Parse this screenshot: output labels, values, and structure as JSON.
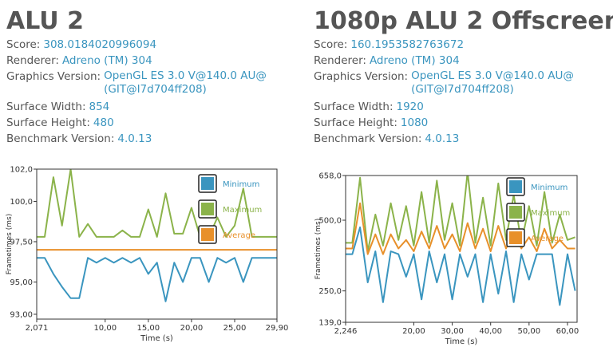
{
  "left": {
    "title": "ALU 2",
    "score_label": "Score:",
    "score": "308.0184020996094",
    "renderer_label": "Renderer:",
    "renderer": "Adreno (TM) 304",
    "gv_label": "Graphics Version:",
    "gv_line1": "OpenGL ES 3.0 V@140.0 AU@",
    "gv_line2": "(GIT@I7d704ff208)",
    "sw_label": "Surface Width:",
    "sw": "854",
    "sh_label": "Surface Height:",
    "sh": "480",
    "bv_label": "Benchmark Version:",
    "bv": "4.0.13"
  },
  "right": {
    "title": "1080p ALU 2 Offscreen",
    "score_label": "Score:",
    "score": "160.1953582763672",
    "renderer_label": "Renderer:",
    "renderer": "Adreno (TM) 304",
    "gv_label": "Graphics Version:",
    "gv_line1": "OpenGL ES 3.0 V@140.0 AU@",
    "gv_line2": "(GIT@I7d704ff208)",
    "sw_label": "Surface Width:",
    "sw": "1920",
    "sh_label": "Surface Height:",
    "sh": "1080",
    "bv_label": "Benchmark Version:",
    "bv": "4.0.13"
  },
  "colors": {
    "minimum": "#3a95bf",
    "maximum": "#8bb34a",
    "average": "#e8902a",
    "text": "#555555",
    "value": "#3a95bf"
  },
  "chart_data": [
    {
      "type": "line",
      "xlabel": "Time (s)",
      "ylabel": "Frametimes (ms)",
      "xlim": [
        2.071,
        29.9
      ],
      "ylim": [
        92.7,
        102.0
      ],
      "x_ticks": [
        "2,071",
        "10,00",
        "15,00",
        "20,00",
        "25,00",
        "29,90"
      ],
      "x_tick_values": [
        2.071,
        10.0,
        15.0,
        20.0,
        25.0,
        29.9
      ],
      "y_ticks": [
        "102,0",
        "100,0",
        "97,50",
        "95,00",
        "93,00"
      ],
      "y_tick_values": [
        102.0,
        100.0,
        97.5,
        95.0,
        93.0
      ],
      "legend": [
        "Minimum",
        "Maximum",
        "Average"
      ],
      "legend_position": "right",
      "x": [
        2.071,
        3.0,
        4.0,
        5.0,
        6.0,
        7.0,
        8.0,
        9.0,
        10.0,
        11.0,
        12.0,
        13.0,
        14.0,
        15.0,
        16.0,
        17.0,
        18.0,
        19.0,
        20.0,
        21.0,
        22.0,
        23.0,
        24.0,
        25.0,
        26.0,
        27.0,
        28.0,
        29.0,
        29.9
      ],
      "series": [
        {
          "name": "Minimum",
          "values": [
            96.5,
            96.5,
            95.5,
            94.7,
            94.0,
            94.0,
            96.5,
            96.2,
            96.5,
            96.2,
            96.5,
            96.2,
            96.5,
            95.5,
            96.2,
            93.8,
            96.2,
            95.0,
            96.5,
            96.5,
            95.0,
            96.5,
            96.2,
            96.5,
            95.0,
            96.5,
            96.5,
            96.5,
            96.5
          ]
        },
        {
          "name": "Maximum",
          "values": [
            97.8,
            97.8,
            101.5,
            98.5,
            102.0,
            97.8,
            98.6,
            97.8,
            97.8,
            97.8,
            98.2,
            97.8,
            97.8,
            99.5,
            97.8,
            100.5,
            98.0,
            98.0,
            99.6,
            97.8,
            97.8,
            99.0,
            97.8,
            98.5,
            100.8,
            97.8,
            97.8,
            97.8,
            97.8
          ]
        },
        {
          "name": "Average",
          "values": [
            97.0,
            97.0,
            97.0,
            97.0,
            97.0,
            97.0,
            97.0,
            97.0,
            97.0,
            97.0,
            97.0,
            97.0,
            97.0,
            97.0,
            97.0,
            97.0,
            97.0,
            97.0,
            97.0,
            97.0,
            97.0,
            97.0,
            97.0,
            97.0,
            97.0,
            97.0,
            97.0,
            97.0,
            97.0
          ]
        }
      ]
    },
    {
      "type": "line",
      "xlabel": "Time (s)",
      "ylabel": "Frametimes (ms)",
      "xlim": [
        2.246,
        62.5
      ],
      "ylim": [
        139.0,
        658.0
      ],
      "x_ticks": [
        "2,246",
        "20,00",
        "30,00",
        "40,00",
        "50,00",
        "60,00"
      ],
      "x_tick_values": [
        2.246,
        20.0,
        30.0,
        40.0,
        50.0,
        60.0
      ],
      "y_ticks": [
        "658,0",
        "500,0",
        "250,0",
        "139,0"
      ],
      "y_tick_values": [
        658.0,
        500.0,
        250.0,
        139.0
      ],
      "legend": [
        "Minimum",
        "Maximum",
        "Average"
      ],
      "legend_position": "right",
      "x": [
        2.246,
        4.0,
        6.0,
        8.0,
        10.0,
        12.0,
        14.0,
        16.0,
        18.0,
        20.0,
        22.0,
        24.0,
        26.0,
        28.0,
        30.0,
        32.0,
        34.0,
        36.0,
        38.0,
        40.0,
        42.0,
        44.0,
        46.0,
        48.0,
        50.0,
        52.0,
        54.0,
        56.0,
        58.0,
        60.0,
        62.0
      ],
      "series": [
        {
          "name": "Minimum",
          "values": [
            380,
            380,
            475,
            280,
            390,
            210,
            390,
            380,
            300,
            380,
            220,
            390,
            280,
            380,
            220,
            380,
            300,
            380,
            210,
            380,
            240,
            390,
            210,
            380,
            290,
            380,
            380,
            380,
            200,
            380,
            250
          ]
        },
        {
          "name": "Maximum",
          "values": [
            420,
            420,
            650,
            390,
            520,
            410,
            560,
            430,
            550,
            410,
            600,
            420,
            640,
            430,
            560,
            410,
            670,
            420,
            580,
            410,
            630,
            430,
            590,
            420,
            550,
            410,
            600,
            420,
            520,
            430,
            440
          ]
        },
        {
          "name": "Average",
          "values": [
            400,
            400,
            560,
            380,
            450,
            380,
            450,
            400,
            430,
            390,
            460,
            400,
            480,
            400,
            450,
            390,
            490,
            400,
            470,
            390,
            480,
            400,
            460,
            400,
            440,
            390,
            470,
            400,
            430,
            400,
            400
          ]
        }
      ]
    }
  ]
}
